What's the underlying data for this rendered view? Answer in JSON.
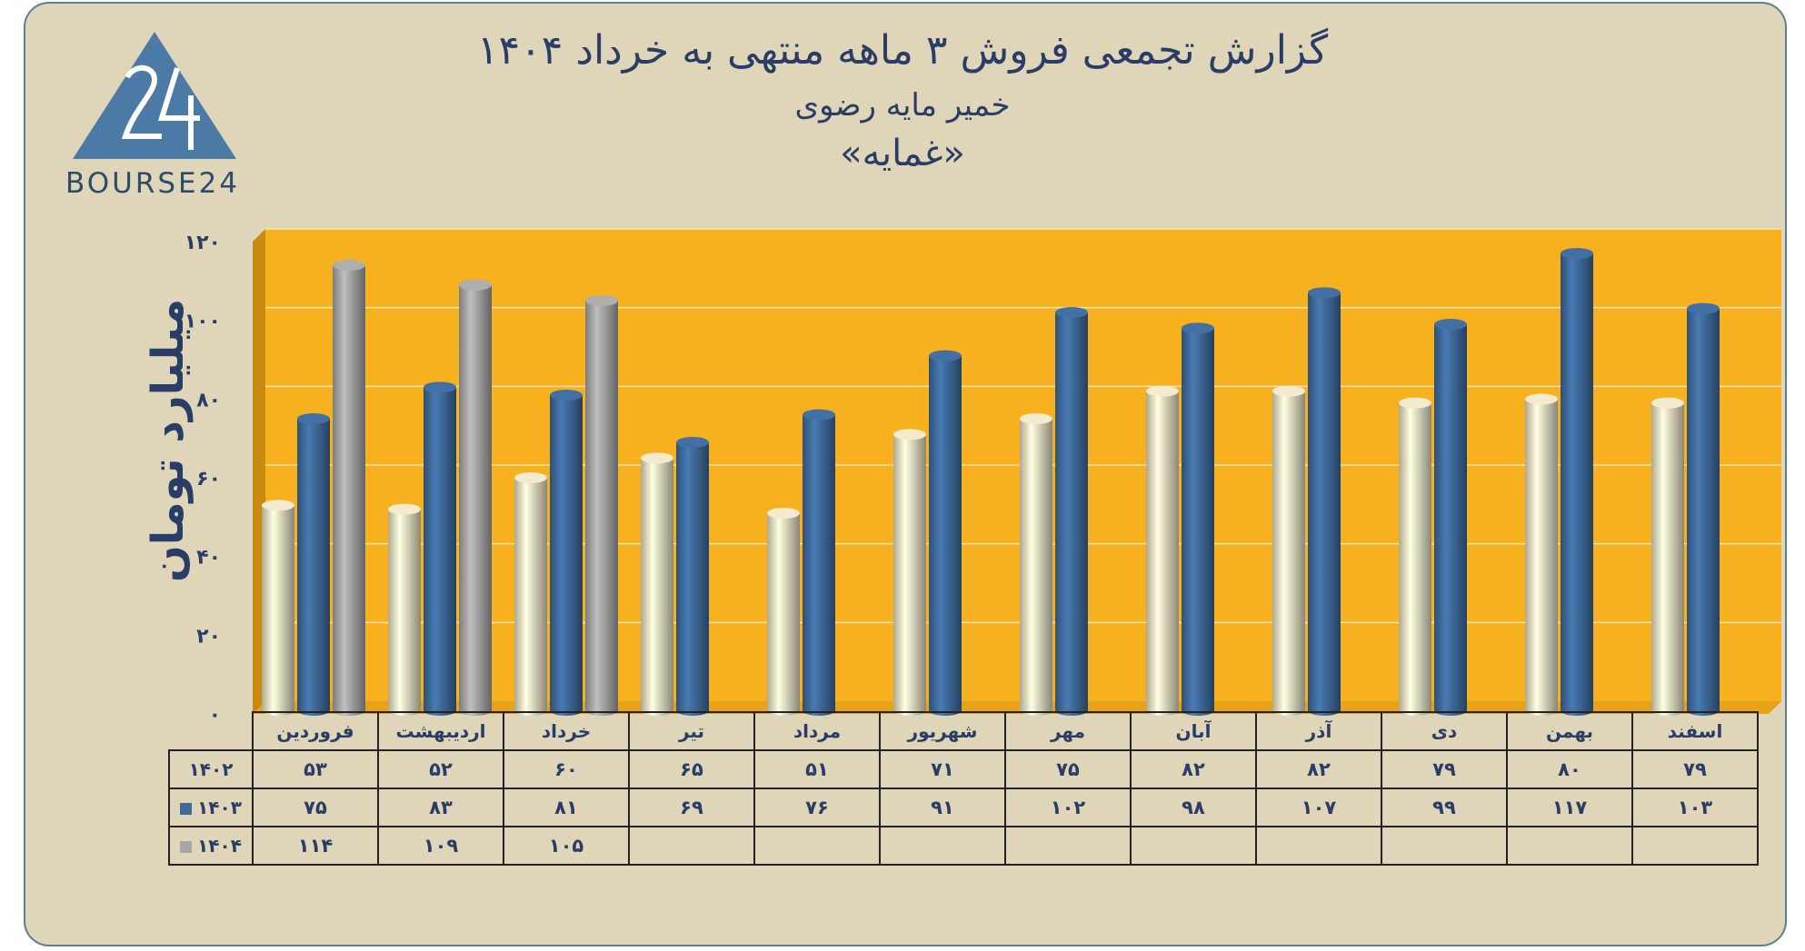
{
  "title": {
    "line1": "گزارش تجمعی فروش ۳ ماهه منتهی به خرداد ۱۴۰۴",
    "line2": "خمیر مایه رضوی",
    "line3": "«غمایه»"
  },
  "logo": {
    "text": "BOURSE24",
    "colors": {
      "triangle": "#4b7aa6",
      "figure": "#ffffff"
    }
  },
  "colors": {
    "plot_bg": "#f7b01e",
    "frame_bg": "#dfd5b8",
    "series_1402": "#e8dfc3",
    "series_1403": "#3f6b9c",
    "series_1404": "#a6a6a6",
    "text": "#2a3d66"
  },
  "chart_data": {
    "type": "bar",
    "title": "گزارش تجمعی فروش ۳ ماهه منتهی به خرداد ۱۴۰۴",
    "subtitle": "خمیر مایه رضوی «غمایه»",
    "ylabel": "میلیارد تومان",
    "ylim": [
      0,
      120
    ],
    "yticks": [
      0,
      20,
      40,
      60,
      80,
      100,
      120
    ],
    "ytick_labels": [
      "۰",
      "۲۰",
      "۴۰",
      "۶۰",
      "۸۰",
      "۱۰۰",
      "۱۲۰"
    ],
    "grid": true,
    "legend": "data-table",
    "categories": [
      "فروردین",
      "اردیبهشت",
      "خرداد",
      "تیر",
      "مرداد",
      "شهریور",
      "مهر",
      "آبان",
      "آذر",
      "دی",
      "بهمن",
      "اسفند"
    ],
    "series": [
      {
        "name": "۱۴۰۲",
        "color": "#e8dfc3",
        "values": [
          53,
          52,
          60,
          65,
          51,
          71,
          75,
          82,
          82,
          79,
          80,
          79
        ],
        "labels": [
          "۵۳",
          "۵۲",
          "۶۰",
          "۶۵",
          "۵۱",
          "۷۱",
          "۷۵",
          "۸۲",
          "۸۲",
          "۷۹",
          "۸۰",
          "۷۹"
        ]
      },
      {
        "name": "۱۴۰۳",
        "color": "#3f6b9c",
        "values": [
          75,
          83,
          81,
          69,
          76,
          91,
          102,
          98,
          107,
          99,
          117,
          103
        ],
        "labels": [
          "۷۵",
          "۸۳",
          "۸۱",
          "۶۹",
          "۷۶",
          "۹۱",
          "۱۰۲",
          "۹۸",
          "۱۰۷",
          "۹۹",
          "۱۱۷",
          "۱۰۳"
        ]
      },
      {
        "name": "۱۴۰۴",
        "color": "#a6a6a6",
        "values": [
          114,
          109,
          105,
          null,
          null,
          null,
          null,
          null,
          null,
          null,
          null,
          null
        ],
        "labels": [
          "۱۱۴",
          "۱۰۹",
          "۱۰۵",
          "",
          "",
          "",
          "",
          "",
          "",
          "",
          "",
          ""
        ]
      }
    ]
  }
}
